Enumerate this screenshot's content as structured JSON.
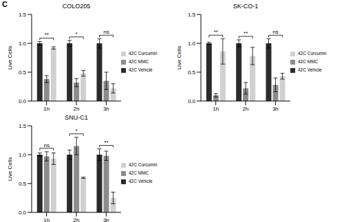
{
  "panel_label": "C",
  "chart_data": [
    {
      "type": "bar",
      "title": "COLO205",
      "categories": [
        "1h",
        "2h",
        "3h"
      ],
      "y_label": "Live Cells",
      "legend": "right",
      "ylim": [
        0,
        1.5
      ],
      "yticks": [
        {
          "value": 0,
          "label": "0.0"
        },
        {
          "value": 0.5,
          "label": "0.5"
        },
        {
          "value": 1,
          "label": "1.0"
        },
        {
          "value": 1.5,
          "label": "1.5"
        }
      ],
      "series": [
        {
          "name": "42C Vehicle",
          "color": "#2b2b2b",
          "values": [
            1.0,
            1.0,
            1.0
          ],
          "errors": [
            0.03,
            0.05,
            0.08
          ]
        },
        {
          "name": "42C MMC",
          "color": "#8c8c8c",
          "values": [
            0.38,
            0.32,
            0.35
          ],
          "errors": [
            0.06,
            0.07,
            0.15
          ]
        },
        {
          "name": "42C Curcumin",
          "color": "#d0d0d0",
          "values": [
            0.92,
            0.48,
            0.22
          ],
          "errors": [
            0.02,
            0.05,
            0.08
          ]
        }
      ],
      "annotations": [
        "**",
        "*",
        "ns"
      ]
    },
    {
      "type": "bar",
      "title": "SK-CO-1",
      "categories": [
        "1h",
        "2h",
        "3h"
      ],
      "y_label": "Live Cells",
      "legend": "right",
      "ylim": [
        0,
        1.5
      ],
      "yticks": [
        {
          "value": 0,
          "label": "0.0"
        },
        {
          "value": 0.5,
          "label": "0.5"
        },
        {
          "value": 1,
          "label": "1.0"
        },
        {
          "value": 1.5,
          "label": "1.5"
        }
      ],
      "series": [
        {
          "name": "42C Vehicle",
          "color": "#2b2b2b",
          "values": [
            1.0,
            1.0,
            1.0
          ],
          "errors": [
            0.02,
            0.06,
            0.08
          ]
        },
        {
          "name": "42C MMC",
          "color": "#8c8c8c",
          "values": [
            0.1,
            0.22,
            0.28
          ],
          "errors": [
            0.03,
            0.1,
            0.12
          ]
        },
        {
          "name": "42C Curcumin",
          "color": "#d0d0d0",
          "values": [
            0.86,
            0.78,
            0.43
          ],
          "errors": [
            0.22,
            0.15,
            0.05
          ]
        }
      ],
      "annotations": [
        "**",
        "**",
        "ns"
      ]
    },
    {
      "type": "bar",
      "title": "SNU-C1",
      "categories": [
        "1h",
        "2h",
        "3h"
      ],
      "y_label": "Live Cells",
      "legend": "right",
      "ylim": [
        0,
        1.5
      ],
      "yticks": [
        {
          "value": 0,
          "label": "0.0"
        },
        {
          "value": 0.5,
          "label": "0.5"
        },
        {
          "value": 1,
          "label": "1.0"
        },
        {
          "value": 1.5,
          "label": "1.5"
        }
      ],
      "series": [
        {
          "name": "42C Vehicle",
          "color": "#2b2b2b",
          "values": [
            1.0,
            1.0,
            1.0
          ],
          "errors": [
            0.03,
            0.08,
            0.1
          ]
        },
        {
          "name": "42C MMC",
          "color": "#8c8c8c",
          "values": [
            0.97,
            1.15,
            0.98
          ],
          "errors": [
            0.08,
            0.15,
            0.08
          ]
        },
        {
          "name": "42C Curcumin",
          "color": "#d0d0d0",
          "values": [
            0.93,
            0.6,
            0.25
          ],
          "errors": [
            0.1,
            0.01,
            0.1
          ]
        }
      ],
      "annotations": [
        "ns",
        "*",
        "**"
      ]
    }
  ]
}
